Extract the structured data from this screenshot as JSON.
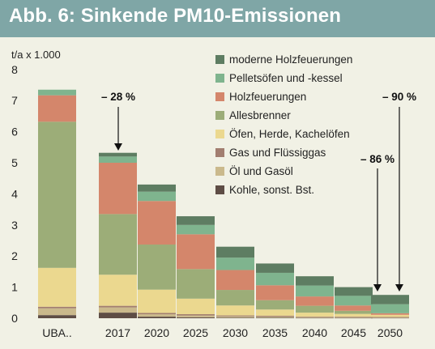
{
  "header": {
    "title": "Abb. 6: Sinkende PM10-Emissionen"
  },
  "colors": {
    "header_bg": "#7fa6a6",
    "page_bg": "#f1f1e5",
    "moderne_holzfeuerungen": "#5e7d62",
    "pelletsoefen": "#7fb48e",
    "holzfeuerungen": "#d4866b",
    "allesbrenner": "#9cad78",
    "oefen_herde": "#ebd88f",
    "gas_fluessiggas": "#a27e70",
    "oel_gas": "#cab98c",
    "kohle": "#5e4d45"
  },
  "chart_data": {
    "type": "bar",
    "stacked": true,
    "ylabel": "t/a x 1.000",
    "ylim": [
      0,
      8
    ],
    "yticks": [
      "0",
      "1",
      "2",
      "3",
      "4",
      "5",
      "6",
      "7",
      "8"
    ],
    "categories": [
      "UBA..",
      "2017",
      "2020",
      "2025",
      "2030",
      "2035",
      "2040",
      "2045",
      "2050"
    ],
    "series": [
      {
        "name": "Kohle, sonst. Bst.",
        "color": "#5e4d45",
        "values": [
          0.1,
          0.18,
          0.05,
          0.03,
          0.02,
          0.02,
          0.01,
          0.01,
          0.01
        ]
      },
      {
        "name": "Öl und Gasöl",
        "color": "#cab98c",
        "values": [
          0.22,
          0.17,
          0.08,
          0.06,
          0.04,
          0.03,
          0.02,
          0.02,
          0.01
        ]
      },
      {
        "name": "Gas und Flüssiggas",
        "color": "#a27e70",
        "values": [
          0.05,
          0.05,
          0.04,
          0.04,
          0.03,
          0.03,
          0.02,
          0.02,
          0.02
        ]
      },
      {
        "name": "Öfen, Herde, Kachelöfen",
        "color": "#ebd88f",
        "values": [
          1.25,
          1.0,
          0.75,
          0.5,
          0.32,
          0.2,
          0.13,
          0.09,
          0.07
        ]
      },
      {
        "name": "Allesbrenner",
        "color": "#9cad78",
        "values": [
          4.7,
          1.95,
          1.45,
          0.95,
          0.5,
          0.3,
          0.22,
          0.1,
          0.0
        ]
      },
      {
        "name": "Holzfeuerungen",
        "color": "#d4866b",
        "values": [
          0.85,
          1.65,
          1.4,
          1.12,
          0.64,
          0.48,
          0.3,
          0.17,
          0.05
        ]
      },
      {
        "name": "Pelletsöfen und -kessel",
        "color": "#7fb48e",
        "values": [
          0.18,
          0.2,
          0.3,
          0.3,
          0.4,
          0.4,
          0.35,
          0.31,
          0.29
        ]
      },
      {
        "name": "moderne Holzfeuerungen",
        "color": "#5e7d62",
        "values": [
          0.0,
          0.12,
          0.23,
          0.28,
          0.35,
          0.3,
          0.3,
          0.28,
          0.3
        ]
      }
    ],
    "legend_order": [
      "moderne Holzfeuerungen",
      "Pelletsöfen und -kessel",
      "Holzfeuerungen",
      "Allesbrenner",
      "Öfen, Herde, Kachelöfen",
      "Gas und Flüssiggas",
      "Öl und Gasöl",
      "Kohle, sonst. Bst."
    ],
    "legend_position": "top-right",
    "grid": false,
    "annotations": [
      {
        "text": "– 28 %",
        "category": "2017"
      },
      {
        "text": "– 86 %",
        "category": "2045"
      },
      {
        "text": "– 90 %",
        "category": "2050"
      }
    ]
  }
}
